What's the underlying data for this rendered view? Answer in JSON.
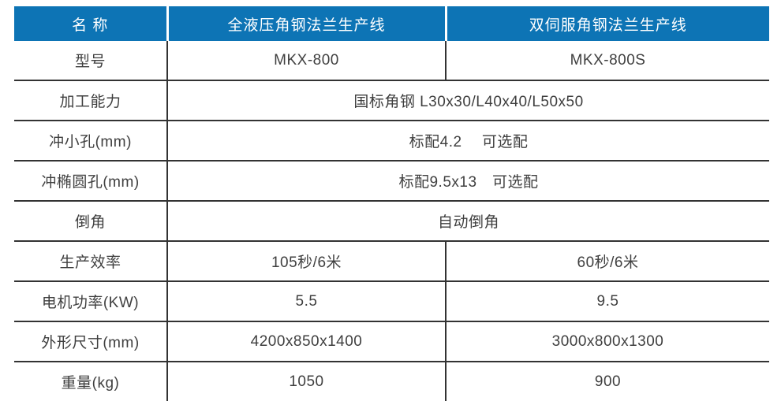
{
  "table": {
    "header": {
      "bg_color": "#0d74b5",
      "text_color": "#ffffff",
      "cells": [
        "名 称",
        "全液压角钢法兰生产线",
        "双伺服角钢法兰生产线"
      ]
    },
    "rows": [
      {
        "label": "型号",
        "values": [
          "MKX-800",
          "MKX-800S"
        ]
      },
      {
        "label": "加工能力",
        "span_value": "国标角钢 L30x30/L40x40/L50x50"
      },
      {
        "label": "冲小孔(mm)",
        "span_value": "标配4.2　 可选配"
      },
      {
        "label": "冲椭圆孔(mm)",
        "span_value": "标配9.5x13　可选配"
      },
      {
        "label": "倒角",
        "span_value": "自动倒角"
      },
      {
        "label": "生产效率",
        "values": [
          "105秒/6米",
          "60秒/6米"
        ]
      },
      {
        "label": "电机功率(KW)",
        "values": [
          "5.5",
          "9.5"
        ]
      },
      {
        "label": "外形尺寸(mm)",
        "values": [
          "4200x850x1400",
          "3000x800x1300"
        ]
      },
      {
        "label": "重量(kg)",
        "values": [
          "1050",
          "900"
        ]
      }
    ],
    "colors": {
      "rule": "#333333",
      "body_text": "#3f3f3f"
    }
  }
}
